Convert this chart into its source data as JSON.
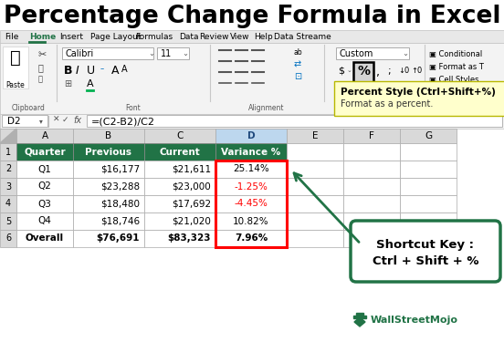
{
  "title": "Percentage Change Formula in Excel",
  "title_color": "#000000",
  "title_fontsize": 19,
  "ribbon_tabs": [
    "File",
    "Home",
    "Insert",
    "Page Layout",
    "Formulas",
    "Data",
    "Review",
    "View",
    "Help",
    "Data Streame"
  ],
  "active_tab": "Home",
  "formula_bar_cell": "D2",
  "formula_bar_formula": "=(C2-B2)/C2",
  "col_headers": [
    "A",
    "B",
    "C",
    "D",
    "E",
    "F",
    "G"
  ],
  "table_headers": [
    "Quarter",
    "Previous",
    "Current",
    "Variance %"
  ],
  "header_bg": "#217346",
  "header_text_color": "#ffffff",
  "rows": [
    [
      "Q1",
      "$16,177",
      "$21,611",
      "25.14%"
    ],
    [
      "Q2",
      "$23,288",
      "$23,000",
      "-1.25%"
    ],
    [
      "Q3",
      "$18,480",
      "$17,692",
      "-4.45%"
    ],
    [
      "Q4",
      "$18,746",
      "$21,020",
      "10.82%"
    ],
    [
      "Overall",
      "$76,691",
      "$83,323",
      "7.96%"
    ]
  ],
  "variance_colors": [
    "#000000",
    "#ff0000",
    "#ff0000",
    "#000000",
    "#000000"
  ],
  "d_col_border_color": "#ff0000",
  "tooltip_bg": "#ffffcc",
  "tooltip_title": "Percent Style (Ctrl+Shift+%)",
  "tooltip_body": "Format as a percent.",
  "shortcut_box_text_line1": "Shortcut Key :",
  "shortcut_box_text_line2": "Ctrl + Shift + %",
  "shortcut_box_border": "#217346",
  "shortcut_box_bg": "#ffffff",
  "bg_color": "#ffffff",
  "ribbon_bg": "#f3f3f3",
  "tab_bar_bg": "#e8e8e8",
  "cell_bg": "#ffffff",
  "gray_header_bg": "#d9d9d9",
  "blue_col_bg": "#bdd7ee",
  "wsm_color": "#217346"
}
